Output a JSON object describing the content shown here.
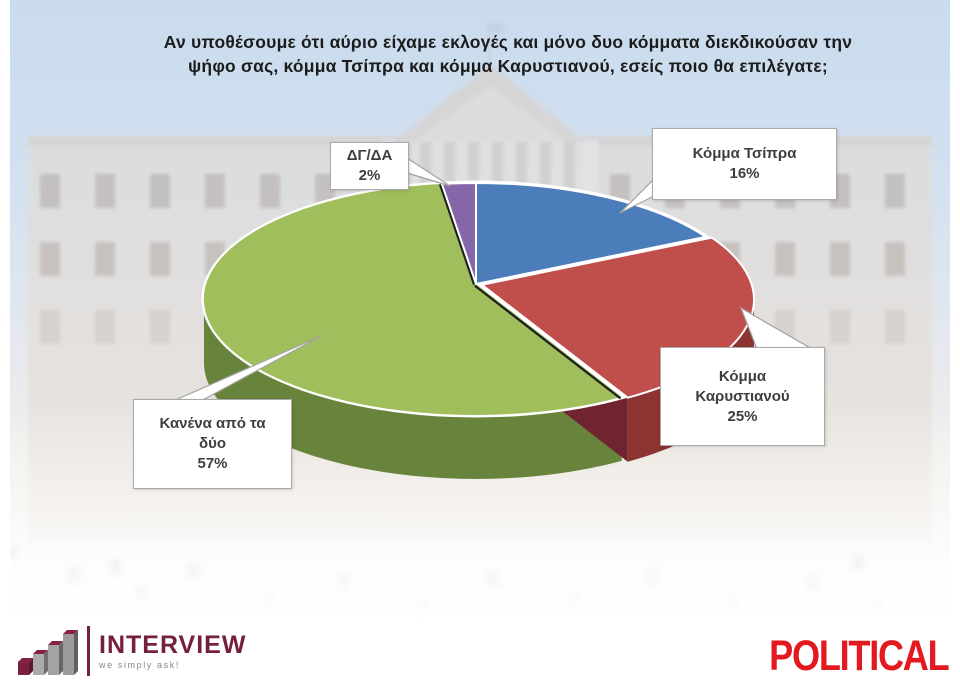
{
  "header": {
    "title_lines": [
      "Αν υποθέσουμε ότι αύριο είχαμε εκλογές και μόνο δυο κόμματα διεκδικούσαν την",
      "ψήφο σας, κόμμα Τσίπρα και κόμμα Καρυστιανού, εσείς ποιο θα επιλέγατε;"
    ]
  },
  "chart_data": {
    "type": "pie",
    "style": "3d",
    "title": "Αν υποθέσουμε ότι αύριο είχαμε εκλογές και μόνο δυο κόμματα διεκδικούσαν την ψήφο σας, κόμμα Τσίπρα και κόμμα Καρυστιανού, εσείς ποιο θα επιλέγατε;",
    "start_angle_deg": -90,
    "direction": "clockwise",
    "legend": "none",
    "data_labels": "callout-boxes",
    "slices": [
      {
        "label": "Κόμμα Τσίπρα",
        "value_pct": 16,
        "color": "#4b7dba",
        "side_color": "#30567f",
        "callout_lines": [
          "Κόμμα Τσίπρα",
          "16%"
        ]
      },
      {
        "label": "Κόμμα Καρυστιανού",
        "value_pct": 25,
        "color": "#c04f4b",
        "side_color": "#8c3431",
        "cut_color": "#6f2430",
        "callout_lines": [
          "Κόμμα",
          "Καρυστιανού",
          "25%"
        ]
      },
      {
        "label": "Κανένα από τα δύο",
        "value_pct": 57,
        "color": "#a0bf5c",
        "side_color": "#68843c",
        "callout_lines": [
          "Κανένα από τα",
          "δύο",
          "57%"
        ]
      },
      {
        "label": "ΔΓ/ΔΑ",
        "value_pct": 2,
        "color": "#8566a8",
        "side_color": "#5a4374",
        "callout_lines": [
          "ΔΓ/ΔΑ",
          "2%"
        ]
      }
    ]
  },
  "branding": {
    "pollster_name": "INTERVIEW",
    "pollster_tagline": "we simply ask!",
    "publisher_name": "POLITICAL",
    "publisher_color": "#e3191f",
    "pollster_color": "#76203f"
  }
}
